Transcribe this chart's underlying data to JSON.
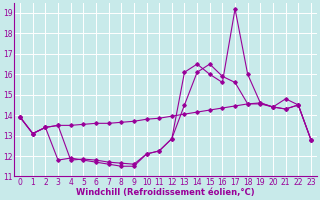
{
  "background_color": "#c8eaea",
  "line_color": "#990099",
  "grid_color": "#ffffff",
  "xlabel": "Windchill (Refroidissement éolien,°C)",
  "xlabel_fontsize": 6.0,
  "tick_fontsize": 5.5,
  "ylim": [
    11,
    19.5
  ],
  "xlim": [
    -0.5,
    23.5
  ],
  "yticks": [
    11,
    12,
    13,
    14,
    15,
    16,
    17,
    18,
    19
  ],
  "xticks": [
    0,
    1,
    2,
    3,
    4,
    5,
    6,
    7,
    8,
    9,
    10,
    11,
    12,
    13,
    14,
    15,
    16,
    17,
    18,
    19,
    20,
    21,
    22,
    23
  ],
  "series1_x": [
    0,
    1,
    2,
    3,
    4,
    5,
    6,
    7,
    8,
    9,
    10,
    11,
    12,
    13,
    14,
    15,
    16,
    17,
    18,
    19,
    20,
    21,
    22,
    23
  ],
  "series1_y": [
    13.9,
    13.1,
    13.4,
    13.5,
    13.5,
    13.55,
    13.6,
    13.6,
    13.65,
    13.7,
    13.8,
    13.85,
    13.95,
    14.05,
    14.15,
    14.25,
    14.35,
    14.45,
    14.55,
    14.6,
    14.4,
    14.3,
    14.5,
    12.8
  ],
  "series2_x": [
    0,
    1,
    2,
    3,
    4,
    5,
    6,
    7,
    8,
    9,
    10,
    11,
    12,
    13,
    14,
    15,
    16,
    17,
    18,
    19,
    20,
    21,
    22,
    23
  ],
  "series2_y": [
    13.9,
    13.1,
    13.4,
    13.5,
    11.8,
    11.85,
    11.8,
    11.7,
    11.65,
    11.6,
    12.1,
    12.25,
    12.85,
    14.5,
    16.1,
    16.5,
    15.9,
    15.6,
    14.55,
    14.55,
    14.4,
    14.3,
    14.5,
    12.8
  ],
  "series3_x": [
    0,
    1,
    2,
    3,
    4,
    5,
    6,
    7,
    8,
    9,
    10,
    11,
    12,
    13,
    14,
    15,
    16,
    17,
    18,
    19,
    20,
    21,
    22,
    23
  ],
  "series3_y": [
    13.9,
    13.1,
    13.4,
    11.8,
    11.9,
    11.8,
    11.7,
    11.6,
    11.5,
    11.5,
    12.1,
    12.25,
    12.85,
    16.1,
    16.5,
    16.0,
    15.6,
    19.2,
    16.0,
    14.6,
    14.4,
    14.8,
    14.5,
    12.8
  ]
}
